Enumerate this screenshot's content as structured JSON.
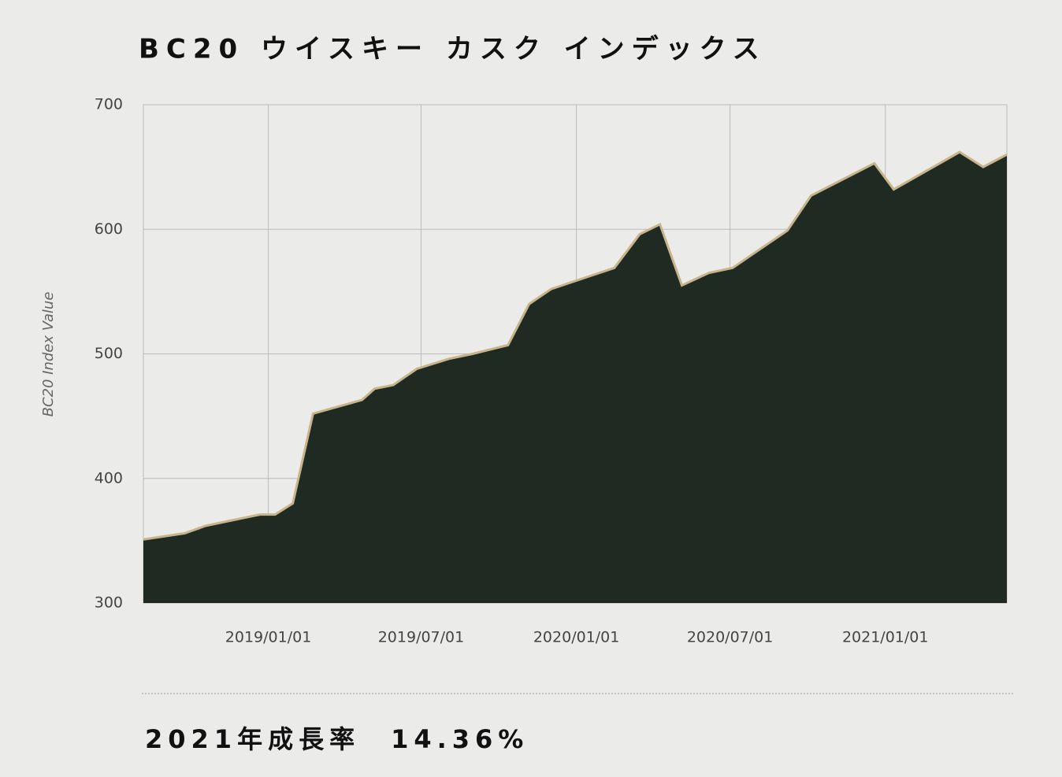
{
  "chart_data": {
    "type": "area",
    "title": "BC20 ウイスキー カスク インデックス",
    "ylabel": "BC20 Index Value",
    "footer": "2021年成長率　14.36%",
    "x": [
      "2018-08-06",
      "2018-09-24",
      "2018-10-19",
      "2018-12-22",
      "2019-01-09",
      "2019-01-30",
      "2019-02-23",
      "2019-04-22",
      "2019-05-07",
      "2019-05-29",
      "2019-06-26",
      "2019-08-03",
      "2019-08-31",
      "2019-10-12",
      "2019-11-06",
      "2019-12-02",
      "2020-02-15",
      "2020-03-16",
      "2020-04-09",
      "2020-05-05",
      "2020-06-06",
      "2020-07-04",
      "2020-09-07",
      "2020-10-05",
      "2020-12-19",
      "2021-01-11",
      "2021-03-30",
      "2021-04-27",
      "2021-05-25"
    ],
    "values": [
      351,
      356,
      362,
      371,
      371,
      380,
      452,
      463,
      472,
      475,
      488,
      496,
      500,
      507,
      540,
      552,
      569,
      596,
      604,
      555,
      565,
      569,
      599,
      627,
      653,
      632,
      662,
      650,
      660
    ],
    "color": "#1e2a22",
    "line_color": "#c8b48a",
    "xlim": [
      "2018-08-06",
      "2021-05-25"
    ],
    "xticks": [
      {
        "value": "2019-01-01",
        "label": "2019/01/01"
      },
      {
        "value": "2019-07-01",
        "label": "2019/07/01"
      },
      {
        "value": "2020-01-01",
        "label": "2020/01/01"
      },
      {
        "value": "2020-07-01",
        "label": "2020/07/01"
      },
      {
        "value": "2021-01-01",
        "label": "2021/01/01"
      }
    ],
    "ylim": [
      300,
      700
    ],
    "yticks": [
      300,
      400,
      500,
      600,
      700
    ],
    "grid": true
  }
}
